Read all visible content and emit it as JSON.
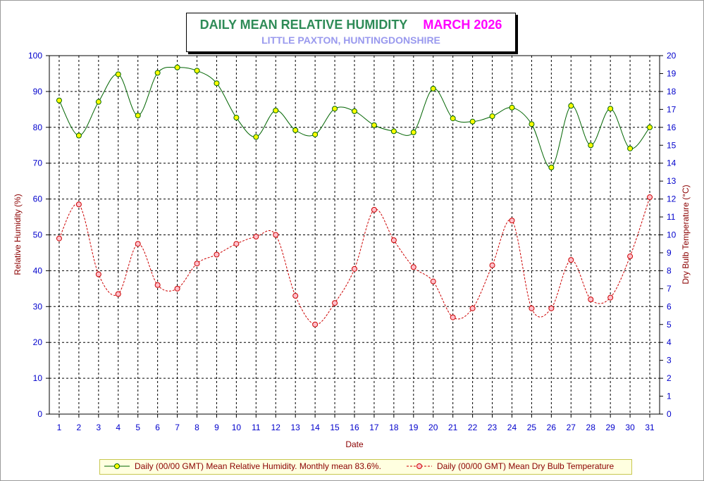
{
  "title": {
    "main": "DAILY MEAN RELATIVE HUMIDITY",
    "month": "MARCH 2026",
    "subtitle": "LITTLE PAXTON, HUNTINGDONSHIRE"
  },
  "legend": {
    "humidity": "Daily (00/00 GMT) Mean Relative Humidity. Monthly mean 83.6%.",
    "temperature": "Daily (00/00 GMT) Mean Dry Bulb Temperature"
  },
  "colors": {
    "humidity_line": "#006400",
    "humidity_marker": "#ffff00",
    "temperature_line": "#cc0000",
    "temperature_marker": "#ffc0cb",
    "tick_text": "#0000cc",
    "axis_label": "#8b0000"
  },
  "chart_data": {
    "type": "line",
    "xlabel": "Date",
    "ylabel": "Relative Humidity (%)",
    "y2label": "Dry Bulb Temperature (°C)",
    "x": [
      1,
      2,
      3,
      4,
      5,
      6,
      7,
      8,
      9,
      10,
      11,
      12,
      13,
      14,
      15,
      16,
      17,
      18,
      19,
      20,
      21,
      22,
      23,
      24,
      25,
      26,
      27,
      28,
      29,
      30,
      31
    ],
    "xlim": [
      0.5,
      31.5
    ],
    "ylim": [
      0,
      100
    ],
    "y2lim": [
      0,
      20
    ],
    "yticks": [
      0,
      10,
      20,
      30,
      40,
      50,
      60,
      70,
      80,
      90,
      100
    ],
    "y2ticks": [
      0,
      1,
      2,
      3,
      4,
      5,
      6,
      7,
      8,
      9,
      10,
      11,
      12,
      13,
      14,
      15,
      16,
      17,
      18,
      19,
      20
    ],
    "grid": true,
    "legend_position": "bottom",
    "series": [
      {
        "name": "Daily (00/00 GMT) Mean Relative Humidity. Monthly mean 83.6%.",
        "axis": "left",
        "values": [
          87.5,
          77.7,
          87.1,
          94.8,
          83.3,
          95.2,
          96.7,
          95.8,
          92.3,
          82.7,
          77.3,
          84.7,
          79.2,
          78.0,
          85.2,
          84.5,
          80.6,
          78.9,
          78.6,
          90.8,
          82.5,
          81.6,
          83.1,
          85.5,
          80.9,
          68.8,
          86.0,
          75.0,
          85.2,
          74.1,
          80.0
        ]
      },
      {
        "name": "Daily (00/00 GMT) Mean Dry Bulb Temperature",
        "axis": "right",
        "values": [
          9.8,
          11.7,
          7.8,
          6.7,
          9.5,
          7.2,
          7.0,
          8.4,
          8.9,
          9.5,
          9.9,
          10.0,
          6.6,
          5.0,
          6.2,
          8.1,
          11.4,
          9.7,
          8.2,
          7.4,
          5.4,
          5.9,
          8.3,
          10.8,
          5.9,
          5.9,
          8.6,
          6.4,
          6.5,
          8.8,
          12.1
        ]
      }
    ]
  }
}
